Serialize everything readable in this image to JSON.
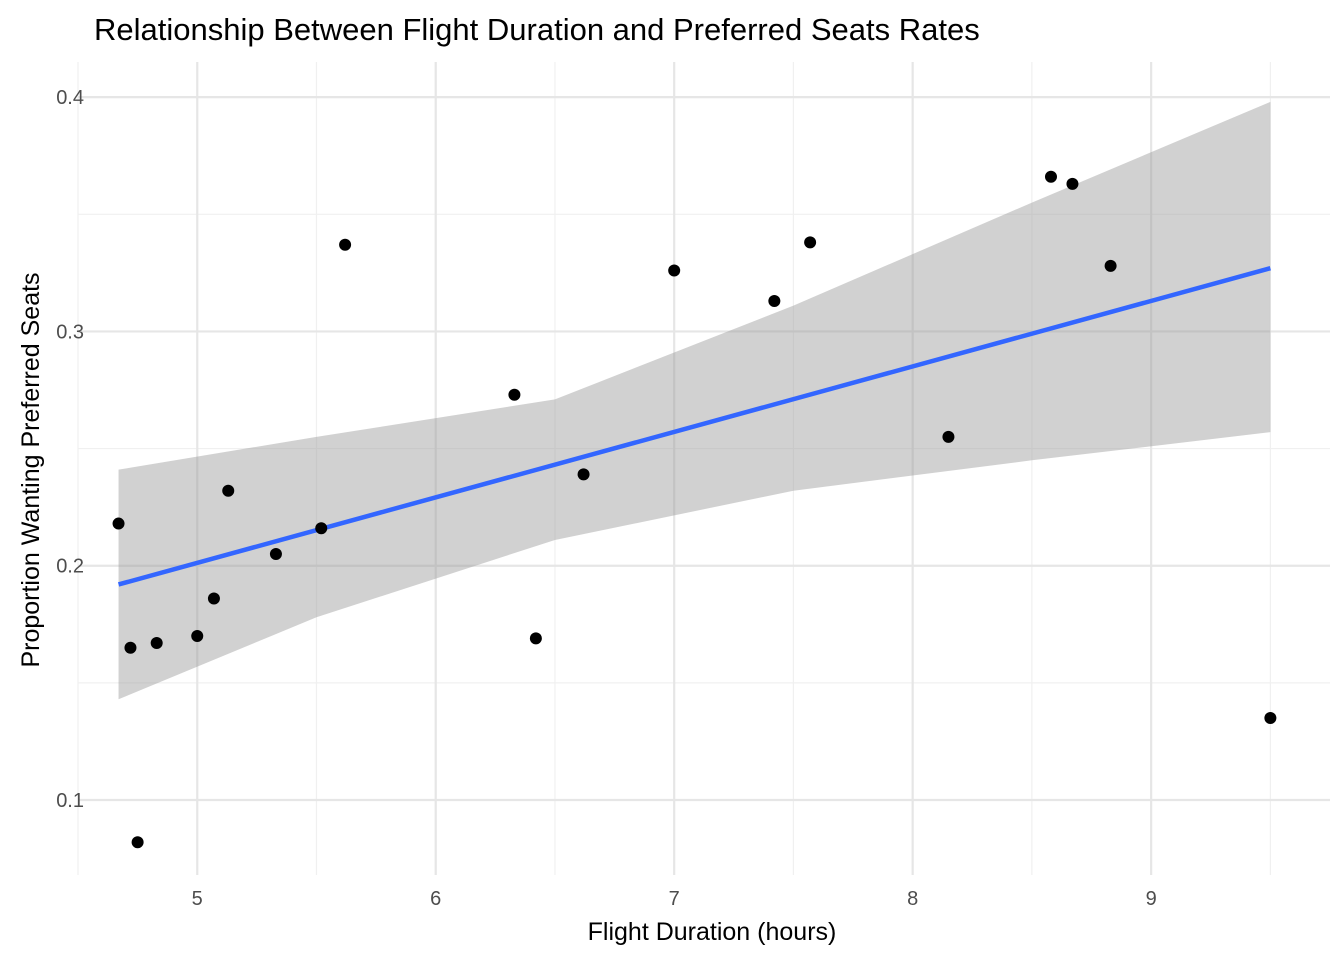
{
  "chart_data": {
    "type": "scatter",
    "title": "Relationship Between Flight Duration and Preferred Seats Rates",
    "xlabel": "Flight Duration (hours)",
    "ylabel": "Proportion Wanting Preferred Seats",
    "xlim": [
      4.5,
      9.75
    ],
    "ylim": [
      0.068,
      0.415
    ],
    "x_ticks": [
      5,
      6,
      7,
      8,
      9
    ],
    "x_tick_labels": [
      "5",
      "6",
      "7",
      "8",
      "9"
    ],
    "y_ticks": [
      0.1,
      0.2,
      0.3,
      0.4
    ],
    "y_tick_labels": [
      "0.1",
      "0.2",
      "0.3",
      "0.4"
    ],
    "grid": true,
    "points": [
      {
        "x": 4.67,
        "y": 0.218
      },
      {
        "x": 4.72,
        "y": 0.165
      },
      {
        "x": 4.75,
        "y": 0.082
      },
      {
        "x": 4.83,
        "y": 0.167
      },
      {
        "x": 5.0,
        "y": 0.17
      },
      {
        "x": 5.07,
        "y": 0.186
      },
      {
        "x": 5.13,
        "y": 0.232
      },
      {
        "x": 5.33,
        "y": 0.205
      },
      {
        "x": 5.52,
        "y": 0.216
      },
      {
        "x": 5.62,
        "y": 0.337
      },
      {
        "x": 6.33,
        "y": 0.273
      },
      {
        "x": 6.42,
        "y": 0.169
      },
      {
        "x": 6.62,
        "y": 0.239
      },
      {
        "x": 7.0,
        "y": 0.326
      },
      {
        "x": 7.42,
        "y": 0.313
      },
      {
        "x": 7.57,
        "y": 0.338
      },
      {
        "x": 8.15,
        "y": 0.255
      },
      {
        "x": 8.58,
        "y": 0.366
      },
      {
        "x": 8.67,
        "y": 0.363
      },
      {
        "x": 8.83,
        "y": 0.328
      },
      {
        "x": 9.5,
        "y": 0.135
      }
    ],
    "fit_line": {
      "color": "#3366ff",
      "x": [
        4.67,
        9.5
      ],
      "y": [
        0.192,
        0.327
      ]
    },
    "confidence_band": {
      "color": "#999999",
      "x": [
        4.67,
        5.5,
        6.5,
        7.5,
        8.5,
        9.5
      ],
      "lower": [
        0.143,
        0.178,
        0.211,
        0.232,
        0.245,
        0.257
      ],
      "upper": [
        0.241,
        0.255,
        0.271,
        0.311,
        0.355,
        0.398
      ]
    },
    "point_color": "#000000"
  }
}
